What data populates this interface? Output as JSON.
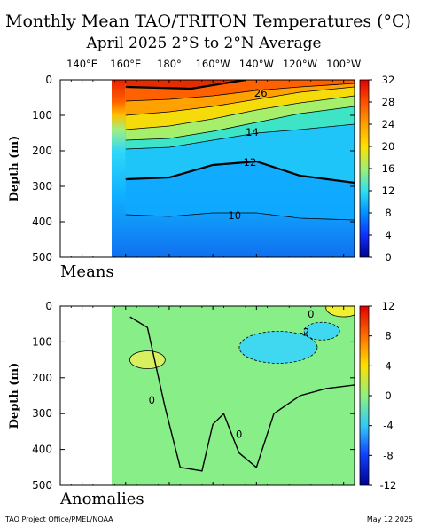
{
  "title": "Monthly Mean TAO/TRITON Temperatures (°C)",
  "subtitle": "April 2025   2°S to 2°N Average",
  "footer_left": "TAO Project Office/PMEL/NOAA",
  "footer_right": "May 12 2025",
  "chart_data": [
    {
      "type": "heatmap",
      "panel_label": "Means",
      "x_tick_labels": [
        "140°E",
        "160°E",
        "180°",
        "160°W",
        "140°W",
        "120°W",
        "100°W"
      ],
      "x_tick_values": [
        140,
        160,
        180,
        200,
        220,
        240,
        260
      ],
      "xlim": [
        130,
        265
      ],
      "data_xlim": [
        160,
        265
      ],
      "ylabel": "Depth (m)",
      "y_ticks": [
        0,
        100,
        200,
        300,
        400,
        500
      ],
      "ylim": [
        0,
        500
      ],
      "colorbar_ticks": [
        32,
        28,
        24,
        20,
        16,
        12,
        8,
        4,
        0
      ],
      "colorbar_range": [
        0,
        32
      ],
      "contour_labels": [
        {
          "text": "26",
          "lon": 222,
          "depth": 40
        },
        {
          "text": "14",
          "lon": 218,
          "depth": 150
        },
        {
          "text": "12",
          "lon": 217,
          "depth": 235
        },
        {
          "text": "10",
          "lon": 210,
          "depth": 385
        }
      ],
      "isotherms": [
        {
          "value": 28,
          "points": [
            [
              160,
              20
            ],
            [
              190,
              25
            ],
            [
              215,
              0
            ]
          ]
        },
        {
          "value": 26,
          "points": [
            [
              160,
              60
            ],
            [
              180,
              55
            ],
            [
              200,
              45
            ],
            [
              220,
              30
            ],
            [
              240,
              20
            ],
            [
              265,
              10
            ]
          ]
        },
        {
          "value": 24,
          "points": [
            [
              160,
              100
            ],
            [
              180,
              90
            ],
            [
              200,
              75
            ],
            [
              220,
              55
            ],
            [
              240,
              35
            ],
            [
              265,
              20
            ]
          ]
        },
        {
          "value": 20,
          "points": [
            [
              160,
              140
            ],
            [
              180,
              130
            ],
            [
              200,
              110
            ],
            [
              220,
              85
            ],
            [
              240,
              65
            ],
            [
              265,
              45
            ]
          ]
        },
        {
          "value": 16,
          "points": [
            [
              160,
              170
            ],
            [
              180,
              165
            ],
            [
              200,
              145
            ],
            [
              220,
              120
            ],
            [
              240,
              95
            ],
            [
              265,
              75
            ]
          ]
        },
        {
          "value": 14,
          "points": [
            [
              160,
              195
            ],
            [
              180,
              190
            ],
            [
              200,
              170
            ],
            [
              220,
              150
            ],
            [
              240,
              140
            ],
            [
              265,
              125
            ]
          ]
        },
        {
          "value": 12,
          "points": [
            [
              160,
              280
            ],
            [
              180,
              275
            ],
            [
              200,
              240
            ],
            [
              220,
              230
            ],
            [
              240,
              270
            ],
            [
              265,
              290
            ]
          ]
        },
        {
          "value": 10,
          "points": [
            [
              160,
              380
            ],
            [
              180,
              385
            ],
            [
              200,
              375
            ],
            [
              220,
              375
            ],
            [
              240,
              390
            ],
            [
              265,
              395
            ]
          ]
        }
      ]
    },
    {
      "type": "heatmap",
      "panel_label": "Anomalies",
      "x_tick_labels": [
        "140°E",
        "160°E",
        "180°",
        "160°W",
        "140°W",
        "120°W",
        "100°W"
      ],
      "x_tick_values": [
        140,
        160,
        180,
        200,
        220,
        240,
        260
      ],
      "xlim": [
        130,
        265
      ],
      "data_xlim": [
        160,
        265
      ],
      "ylabel": "Depth (m)",
      "y_ticks": [
        0,
        100,
        200,
        300,
        400,
        500
      ],
      "ylim": [
        0,
        500
      ],
      "colorbar_ticks": [
        12,
        8,
        4,
        0,
        -4,
        -8,
        -12
      ],
      "colorbar_range": [
        -12,
        12
      ],
      "contour_labels": [
        {
          "text": "0",
          "lon": 172,
          "depth": 265
        },
        {
          "text": "0",
          "lon": 212,
          "depth": 360
        },
        {
          "text": "-2",
          "lon": 242,
          "depth": 75
        },
        {
          "text": "0",
          "lon": 245,
          "depth": 25
        }
      ],
      "anomaly_features": [
        {
          "name": "warm",
          "value": 2,
          "lon": 170,
          "depth": 150
        },
        {
          "name": "cool",
          "value": -2,
          "lon": 230,
          "depth": 115
        },
        {
          "name": "cool",
          "value": -2,
          "lon": 250,
          "depth": 70
        },
        {
          "name": "warm",
          "value": 4,
          "lon": 260,
          "depth": 5
        }
      ]
    }
  ]
}
